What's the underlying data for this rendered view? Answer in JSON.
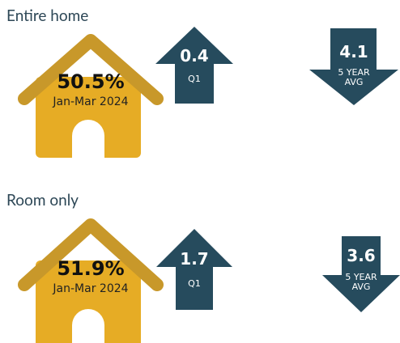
{
  "sections": [
    {
      "title": "Entire home",
      "share": "50.5%",
      "period": "Jan-Mar 2024",
      "up": {
        "value": "0.4",
        "label": "Q1"
      },
      "down": {
        "value": "4.1",
        "label_lines": [
          "5 YEAR",
          "AVG"
        ]
      }
    },
    {
      "title": "Room only",
      "share": "51.9%",
      "period": "Jan-Mar 2024",
      "up": {
        "value": "1.7",
        "label": "Q1"
      },
      "down": {
        "value": "3.6",
        "label_lines": [
          "5 YEAR",
          "AVG"
        ]
      }
    }
  ]
}
